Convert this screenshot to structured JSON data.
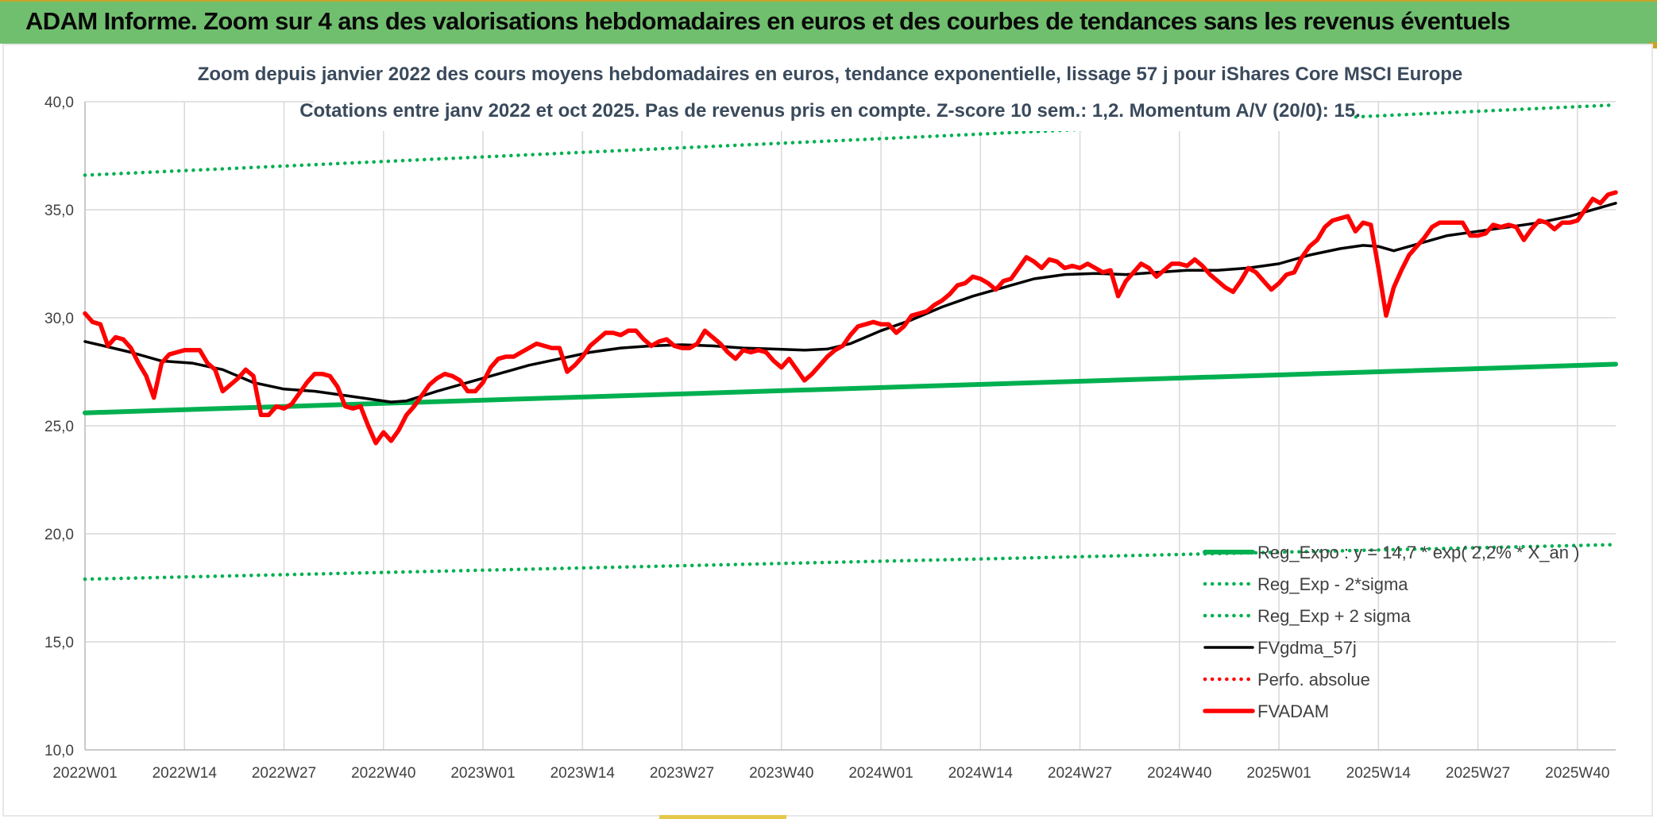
{
  "banner": {
    "title": "ADAM Informe. Zoom sur 4 ans des valorisations hebdomadaires en euros et des courbes de tendances sans les revenus éventuels"
  },
  "colors": {
    "banner_bg": "#70bf6e",
    "green": "#00b050",
    "red": "#ff0000",
    "black": "#000000",
    "title_text": "#3a4a5c"
  },
  "chart_data": {
    "type": "line",
    "title_line1": "Zoom depuis janvier 2022 des cours moyens hebdomadaires en euros, tendance exponentielle, lissage 57 j pour iShares Core MSCI Europe",
    "title_line2": "Cotations entre janv 2022 et oct 2025. Pas de revenus pris en compte. Z-score 10 sem.: 1,2. Momentum A/V (20/0): 15.",
    "ylim": [
      10,
      40
    ],
    "yticks": [
      "10,0",
      "15,0",
      "20,0",
      "25,0",
      "30,0",
      "35,0",
      "40,0"
    ],
    "ytick_values": [
      10,
      15,
      20,
      25,
      30,
      35,
      40
    ],
    "x_week_range": [
      0,
      200
    ],
    "xticks": [
      "2022W01",
      "2022W14",
      "2022W27",
      "2022W40",
      "2023W01",
      "2023W14",
      "2023W27",
      "2023W40",
      "2024W01",
      "2024W14",
      "2024W27",
      "2024W40",
      "2025W01",
      "2025W14",
      "2025W27",
      "2025W40"
    ],
    "xtick_weeks": [
      0,
      13,
      26,
      39,
      52,
      65,
      78,
      91,
      104,
      117,
      130,
      143,
      156,
      169,
      182,
      195
    ],
    "grid": "vertical and horizontal",
    "legend_position": "bottom-right",
    "series": [
      {
        "name": "Reg_Expo : y = 14,7 * exp( 2,2% * X_an )",
        "style": "solid-thick",
        "color": "#00b050",
        "points": [
          [
            0,
            25.6
          ],
          [
            200,
            27.85
          ]
        ]
      },
      {
        "name": "Reg_Exp - 2*sigma",
        "style": "dotted",
        "color": "#00b050",
        "points": [
          [
            0,
            17.9
          ],
          [
            200,
            19.5
          ]
        ]
      },
      {
        "name": "Reg_Exp + 2 sigma",
        "style": "dotted",
        "color": "#00b050",
        "points": [
          [
            0,
            36.6
          ],
          [
            200,
            39.85
          ]
        ]
      },
      {
        "name": "FVgdma_57j",
        "style": "solid",
        "color": "#000000",
        "points": [
          [
            0,
            28.9
          ],
          [
            6,
            28.4
          ],
          [
            10,
            28.0
          ],
          [
            14,
            27.9
          ],
          [
            18,
            27.6
          ],
          [
            22,
            27.0
          ],
          [
            26,
            26.7
          ],
          [
            30,
            26.6
          ],
          [
            34,
            26.4
          ],
          [
            38,
            26.2
          ],
          [
            40,
            26.1
          ],
          [
            42,
            26.15
          ],
          [
            46,
            26.6
          ],
          [
            50,
            27.0
          ],
          [
            54,
            27.4
          ],
          [
            58,
            27.8
          ],
          [
            62,
            28.1
          ],
          [
            66,
            28.4
          ],
          [
            70,
            28.6
          ],
          [
            74,
            28.7
          ],
          [
            78,
            28.75
          ],
          [
            82,
            28.7
          ],
          [
            86,
            28.6
          ],
          [
            90,
            28.55
          ],
          [
            94,
            28.5
          ],
          [
            97,
            28.55
          ],
          [
            100,
            28.8
          ],
          [
            104,
            29.4
          ],
          [
            108,
            29.9
          ],
          [
            112,
            30.5
          ],
          [
            116,
            31.0
          ],
          [
            120,
            31.4
          ],
          [
            124,
            31.8
          ],
          [
            128,
            32.0
          ],
          [
            132,
            32.05
          ],
          [
            136,
            32.0
          ],
          [
            140,
            32.1
          ],
          [
            144,
            32.2
          ],
          [
            148,
            32.2
          ],
          [
            152,
            32.3
          ],
          [
            156,
            32.5
          ],
          [
            160,
            32.9
          ],
          [
            164,
            33.2
          ],
          [
            167,
            33.35
          ],
          [
            169,
            33.3
          ],
          [
            171,
            33.1
          ],
          [
            174,
            33.4
          ],
          [
            178,
            33.8
          ],
          [
            182,
            34.0
          ],
          [
            186,
            34.2
          ],
          [
            190,
            34.4
          ],
          [
            194,
            34.7
          ],
          [
            198,
            35.1
          ],
          [
            200,
            35.3
          ]
        ]
      },
      {
        "name": "Perfo. absolue",
        "style": "dotted",
        "color": "#ff0000",
        "points": []
      },
      {
        "name": "FVADAM",
        "style": "solid-thick",
        "color": "#ff0000",
        "points": [
          [
            0,
            30.2
          ],
          [
            1,
            29.8
          ],
          [
            2,
            29.7
          ],
          [
            3,
            28.7
          ],
          [
            4,
            29.1
          ],
          [
            5,
            29.0
          ],
          [
            6,
            28.6
          ],
          [
            7,
            27.9
          ],
          [
            8,
            27.3
          ],
          [
            9,
            26.3
          ],
          [
            10,
            27.9
          ],
          [
            11,
            28.3
          ],
          [
            12,
            28.4
          ],
          [
            13,
            28.5
          ],
          [
            14,
            28.5
          ],
          [
            15,
            28.5
          ],
          [
            16,
            27.9
          ],
          [
            17,
            27.6
          ],
          [
            18,
            26.6
          ],
          [
            19,
            26.9
          ],
          [
            20,
            27.2
          ],
          [
            21,
            27.6
          ],
          [
            22,
            27.3
          ],
          [
            23,
            25.5
          ],
          [
            24,
            25.5
          ],
          [
            25,
            25.9
          ],
          [
            26,
            25.8
          ],
          [
            27,
            26.0
          ],
          [
            28,
            26.5
          ],
          [
            29,
            27.0
          ],
          [
            30,
            27.4
          ],
          [
            31,
            27.4
          ],
          [
            32,
            27.3
          ],
          [
            33,
            26.8
          ],
          [
            34,
            25.9
          ],
          [
            35,
            25.8
          ],
          [
            36,
            25.9
          ],
          [
            37,
            25.0
          ],
          [
            38,
            24.2
          ],
          [
            39,
            24.7
          ],
          [
            40,
            24.3
          ],
          [
            41,
            24.8
          ],
          [
            42,
            25.5
          ],
          [
            43,
            25.9
          ],
          [
            44,
            26.4
          ],
          [
            45,
            26.9
          ],
          [
            46,
            27.2
          ],
          [
            47,
            27.4
          ],
          [
            48,
            27.3
          ],
          [
            49,
            27.1
          ],
          [
            50,
            26.6
          ],
          [
            51,
            26.6
          ],
          [
            52,
            27.0
          ],
          [
            53,
            27.7
          ],
          [
            54,
            28.1
          ],
          [
            55,
            28.2
          ],
          [
            56,
            28.2
          ],
          [
            57,
            28.4
          ],
          [
            58,
            28.6
          ],
          [
            59,
            28.8
          ],
          [
            60,
            28.7
          ],
          [
            61,
            28.6
          ],
          [
            62,
            28.6
          ],
          [
            63,
            27.5
          ],
          [
            64,
            27.8
          ],
          [
            65,
            28.2
          ],
          [
            66,
            28.7
          ],
          [
            67,
            29.0
          ],
          [
            68,
            29.3
          ],
          [
            69,
            29.3
          ],
          [
            70,
            29.2
          ],
          [
            71,
            29.4
          ],
          [
            72,
            29.4
          ],
          [
            73,
            29.0
          ],
          [
            74,
            28.7
          ],
          [
            75,
            28.9
          ],
          [
            76,
            29.0
          ],
          [
            77,
            28.7
          ],
          [
            78,
            28.6
          ],
          [
            79,
            28.6
          ],
          [
            80,
            28.8
          ],
          [
            81,
            29.4
          ],
          [
            82,
            29.1
          ],
          [
            83,
            28.8
          ],
          [
            84,
            28.4
          ],
          [
            85,
            28.1
          ],
          [
            86,
            28.5
          ],
          [
            87,
            28.4
          ],
          [
            88,
            28.5
          ],
          [
            89,
            28.4
          ],
          [
            90,
            28.0
          ],
          [
            91,
            27.7
          ],
          [
            92,
            28.1
          ],
          [
            93,
            27.6
          ],
          [
            94,
            27.1
          ],
          [
            95,
            27.4
          ],
          [
            96,
            27.8
          ],
          [
            97,
            28.2
          ],
          [
            98,
            28.5
          ],
          [
            99,
            28.7
          ],
          [
            100,
            29.2
          ],
          [
            101,
            29.6
          ],
          [
            102,
            29.7
          ],
          [
            103,
            29.8
          ],
          [
            104,
            29.7
          ],
          [
            105,
            29.7
          ],
          [
            106,
            29.3
          ],
          [
            107,
            29.6
          ],
          [
            108,
            30.1
          ],
          [
            109,
            30.2
          ],
          [
            110,
            30.3
          ],
          [
            111,
            30.6
          ],
          [
            112,
            30.8
          ],
          [
            113,
            31.1
          ],
          [
            114,
            31.5
          ],
          [
            115,
            31.6
          ],
          [
            116,
            31.9
          ],
          [
            117,
            31.8
          ],
          [
            118,
            31.6
          ],
          [
            119,
            31.3
          ],
          [
            120,
            31.7
          ],
          [
            121,
            31.8
          ],
          [
            122,
            32.3
          ],
          [
            123,
            32.8
          ],
          [
            124,
            32.6
          ],
          [
            125,
            32.3
          ],
          [
            126,
            32.7
          ],
          [
            127,
            32.6
          ],
          [
            128,
            32.3
          ],
          [
            129,
            32.4
          ],
          [
            130,
            32.3
          ],
          [
            131,
            32.5
          ],
          [
            132,
            32.3
          ],
          [
            133,
            32.1
          ],
          [
            134,
            32.2
          ],
          [
            135,
            31.0
          ],
          [
            136,
            31.7
          ],
          [
            137,
            32.1
          ],
          [
            138,
            32.5
          ],
          [
            139,
            32.3
          ],
          [
            140,
            31.9
          ],
          [
            141,
            32.2
          ],
          [
            142,
            32.5
          ],
          [
            143,
            32.5
          ],
          [
            144,
            32.4
          ],
          [
            145,
            32.7
          ],
          [
            146,
            32.4
          ],
          [
            147,
            32.0
          ],
          [
            148,
            31.7
          ],
          [
            149,
            31.4
          ],
          [
            150,
            31.2
          ],
          [
            151,
            31.7
          ],
          [
            152,
            32.3
          ],
          [
            153,
            32.1
          ],
          [
            154,
            31.7
          ],
          [
            155,
            31.3
          ],
          [
            156,
            31.6
          ],
          [
            157,
            32.0
          ],
          [
            158,
            32.1
          ],
          [
            159,
            32.8
          ],
          [
            160,
            33.3
          ],
          [
            161,
            33.6
          ],
          [
            162,
            34.2
          ],
          [
            163,
            34.5
          ],
          [
            164,
            34.6
          ],
          [
            165,
            34.7
          ],
          [
            166,
            34.0
          ],
          [
            167,
            34.4
          ],
          [
            168,
            34.3
          ],
          [
            169,
            32.3
          ],
          [
            170,
            30.1
          ],
          [
            171,
            31.4
          ],
          [
            172,
            32.2
          ],
          [
            173,
            32.9
          ],
          [
            174,
            33.3
          ],
          [
            175,
            33.7
          ],
          [
            176,
            34.2
          ],
          [
            177,
            34.4
          ],
          [
            178,
            34.4
          ],
          [
            179,
            34.4
          ],
          [
            180,
            34.4
          ],
          [
            181,
            33.8
          ],
          [
            182,
            33.8
          ],
          [
            183,
            33.9
          ],
          [
            184,
            34.3
          ],
          [
            185,
            34.2
          ],
          [
            186,
            34.3
          ],
          [
            187,
            34.2
          ],
          [
            188,
            33.6
          ],
          [
            189,
            34.1
          ],
          [
            190,
            34.5
          ],
          [
            191,
            34.4
          ],
          [
            192,
            34.1
          ],
          [
            193,
            34.4
          ],
          [
            194,
            34.4
          ],
          [
            195,
            34.5
          ],
          [
            196,
            35.0
          ],
          [
            197,
            35.5
          ],
          [
            198,
            35.3
          ],
          [
            199,
            35.7
          ],
          [
            200,
            35.8
          ]
        ]
      }
    ]
  }
}
